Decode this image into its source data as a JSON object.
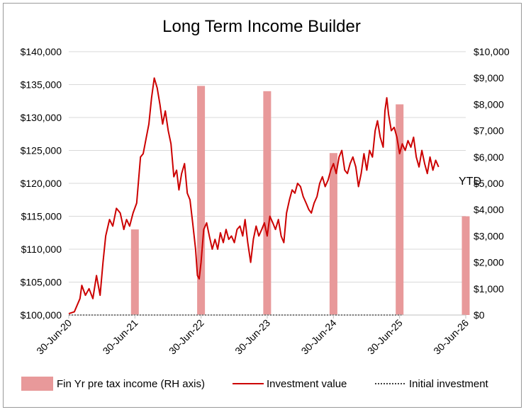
{
  "chart_data": {
    "type": "bar+line",
    "title": "Long Term Income Builder",
    "x_axis": {
      "ticks": [
        "30-Jun-20",
        "30-Jun-21",
        "30-Jun-22",
        "30-Jun-23",
        "30-Jun-24",
        "30-Jun-25",
        "30-Jun-26"
      ],
      "range": [
        "2020-06-30",
        "2026-06-30"
      ]
    },
    "y_left": {
      "range": [
        100000,
        140000
      ],
      "ticks": [
        "$100,000",
        "$105,000",
        "$110,000",
        "$115,000",
        "$120,000",
        "$125,000",
        "$130,000",
        "$135,000",
        "$140,000"
      ],
      "tick_values": [
        100000,
        105000,
        110000,
        115000,
        120000,
        125000,
        130000,
        135000,
        140000
      ]
    },
    "y_right": {
      "range": [
        0,
        10000
      ],
      "ticks": [
        "$0",
        "$1,000",
        "$2,000",
        "$3,000",
        "$4,000",
        "$5,000",
        "$6,000",
        "$7,000",
        "$8,000",
        "$9,000",
        "$10,000"
      ],
      "tick_values": [
        0,
        1000,
        2000,
        3000,
        4000,
        5000,
        6000,
        7000,
        8000,
        9000,
        10000
      ]
    },
    "grid": true,
    "legend_position": "bottom",
    "colors": {
      "bars": "#e8999a",
      "line": "#cc0000",
      "initial": "#404040",
      "grid": "#d9d9d9"
    },
    "bars": {
      "name": "Fin Yr pre tax income (RH axis)",
      "x": [
        "2021-06-30",
        "2022-06-30",
        "2023-06-30",
        "2024-06-30",
        "2025-06-30",
        "2026-06-30"
      ],
      "values": [
        3250,
        8700,
        8500,
        6150,
        8000,
        3750
      ]
    },
    "line": {
      "name": "Investment value",
      "x": [
        "2020-06-30",
        "2020-07-31",
        "2020-08-31",
        "2020-09-10",
        "2020-09-30",
        "2020-10-20",
        "2020-11-10",
        "2020-11-30",
        "2020-12-20",
        "2021-01-05",
        "2021-01-20",
        "2021-02-10",
        "2021-02-28",
        "2021-03-20",
        "2021-04-10",
        "2021-04-30",
        "2021-05-15",
        "2021-06-01",
        "2021-06-20",
        "2021-07-10",
        "2021-07-31",
        "2021-08-15",
        "2021-09-01",
        "2021-09-15",
        "2021-09-30",
        "2021-10-15",
        "2021-10-31",
        "2021-11-15",
        "2021-11-30",
        "2021-12-15",
        "2021-12-31",
        "2022-01-15",
        "2022-01-31",
        "2022-02-15",
        "2022-02-28",
        "2022-03-15",
        "2022-03-31",
        "2022-04-15",
        "2022-04-30",
        "2022-05-15",
        "2022-05-31",
        "2022-06-10",
        "2022-06-20",
        "2022-06-30",
        "2022-07-15",
        "2022-07-31",
        "2022-08-15",
        "2022-08-31",
        "2022-09-15",
        "2022-09-30",
        "2022-10-15",
        "2022-10-31",
        "2022-11-15",
        "2022-11-30",
        "2022-12-15",
        "2022-12-31",
        "2023-01-15",
        "2023-01-31",
        "2023-02-15",
        "2023-02-28",
        "2023-03-15",
        "2023-03-31",
        "2023-04-15",
        "2023-04-30",
        "2023-05-15",
        "2023-05-31",
        "2023-06-15",
        "2023-06-30",
        "2023-07-15",
        "2023-07-31",
        "2023-08-15",
        "2023-08-31",
        "2023-09-15",
        "2023-09-30",
        "2023-10-15",
        "2023-10-31",
        "2023-11-15",
        "2023-11-30",
        "2023-12-15",
        "2023-12-31",
        "2024-01-15",
        "2024-01-31",
        "2024-02-15",
        "2024-02-29",
        "2024-03-15",
        "2024-03-31",
        "2024-04-15",
        "2024-04-30",
        "2024-05-15",
        "2024-05-31",
        "2024-06-15",
        "2024-06-30",
        "2024-07-15",
        "2024-07-31",
        "2024-08-15",
        "2024-08-31",
        "2024-09-15",
        "2024-09-30",
        "2024-10-15",
        "2024-10-31",
        "2024-11-15",
        "2024-11-30",
        "2024-12-15",
        "2024-12-31",
        "2025-01-15",
        "2025-01-31",
        "2025-02-15",
        "2025-02-28",
        "2025-03-15",
        "2025-03-31",
        "2025-04-10",
        "2025-04-20",
        "2025-04-30",
        "2025-05-15",
        "2025-05-31",
        "2025-06-15",
        "2025-06-30",
        "2025-07-15",
        "2025-07-31",
        "2025-08-15",
        "2025-08-31",
        "2025-09-15",
        "2025-09-30",
        "2025-10-15",
        "2025-10-31",
        "2025-11-15",
        "2025-11-30",
        "2025-12-15",
        "2025-12-31",
        "2026-01-15",
        "2026-01-31"
      ],
      "values": [
        100200,
        100500,
        102500,
        104500,
        103000,
        104000,
        102500,
        106000,
        103000,
        108000,
        112000,
        114500,
        113500,
        116200,
        115500,
        113000,
        114500,
        113500,
        115500,
        117000,
        124000,
        124500,
        127000,
        129000,
        133000,
        136000,
        134500,
        132000,
        129000,
        131000,
        128000,
        126000,
        121000,
        122000,
        119000,
        121500,
        123000,
        118500,
        117500,
        114000,
        110000,
        106000,
        105500,
        108000,
        113000,
        114000,
        112000,
        110000,
        111500,
        110000,
        112500,
        111000,
        113000,
        111500,
        112000,
        111000,
        113000,
        113500,
        112000,
        114500,
        111000,
        108000,
        111500,
        113500,
        112000,
        113000,
        114000,
        112000,
        115000,
        114000,
        113000,
        114500,
        112000,
        111000,
        115500,
        117500,
        119000,
        118500,
        120000,
        119500,
        118000,
        117000,
        116000,
        115500,
        117000,
        118000,
        120000,
        121000,
        119500,
        120500,
        122000,
        123000,
        121500,
        124000,
        125000,
        122000,
        121500,
        123000,
        124000,
        122500,
        119500,
        121500,
        124500,
        122000,
        125000,
        124000,
        128000,
        129500,
        127000,
        125500,
        131000,
        133000,
        130500,
        128000,
        128500,
        127000,
        124500,
        126000,
        125000,
        126500,
        125500,
        127000,
        124000,
        122500,
        125000,
        123000,
        121500,
        124000,
        122000,
        123500,
        122500
      ],
      "axis": "left"
    },
    "initial_investment": {
      "name": "Initial investment",
      "value": 100000,
      "x_end": "2025-07-10"
    },
    "annotations": [
      {
        "text": "YTD"
      }
    ]
  }
}
